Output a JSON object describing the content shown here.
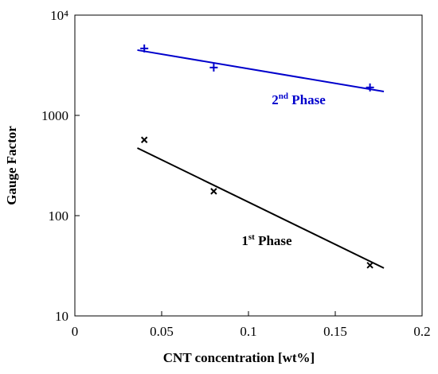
{
  "chart_data": {
    "type": "scatter",
    "xlabel": "CNT concentration [wt%]",
    "ylabel": "Gauge Factor",
    "yscale": "log",
    "xlim": [
      0,
      0.2
    ],
    "xticks": [
      0,
      0.05,
      0.1,
      0.15,
      0.2
    ],
    "ylim": [
      10,
      10000
    ],
    "yticks": [
      10,
      100,
      1000,
      {
        "value": 10000,
        "label": "10⁴"
      }
    ],
    "series": [
      {
        "color": "#0000cc",
        "marker": "plus",
        "x": [
          0.04,
          0.08,
          0.17
        ],
        "values": [
          4650,
          3000,
          1900
        ]
      },
      {
        "color": "#000000",
        "marker": "cross",
        "x": [
          0.04,
          0.08,
          0.17
        ],
        "values": [
          570,
          175,
          32
        ]
      }
    ],
    "fits": [
      {
        "color": "#0000cc",
        "x": [
          0.036,
          0.178
        ],
        "values": [
          4480,
          1730
        ]
      },
      {
        "color": "#000000",
        "x": [
          0.036,
          0.178
        ],
        "values": [
          473,
          30
        ]
      }
    ],
    "annotations": [
      {
        "color": "#0000cc",
        "text": [
          "2",
          "nd",
          " Phase"
        ]
      },
      {
        "color": "#000000",
        "text": [
          "1",
          "st",
          " Phase"
        ]
      }
    ]
  }
}
